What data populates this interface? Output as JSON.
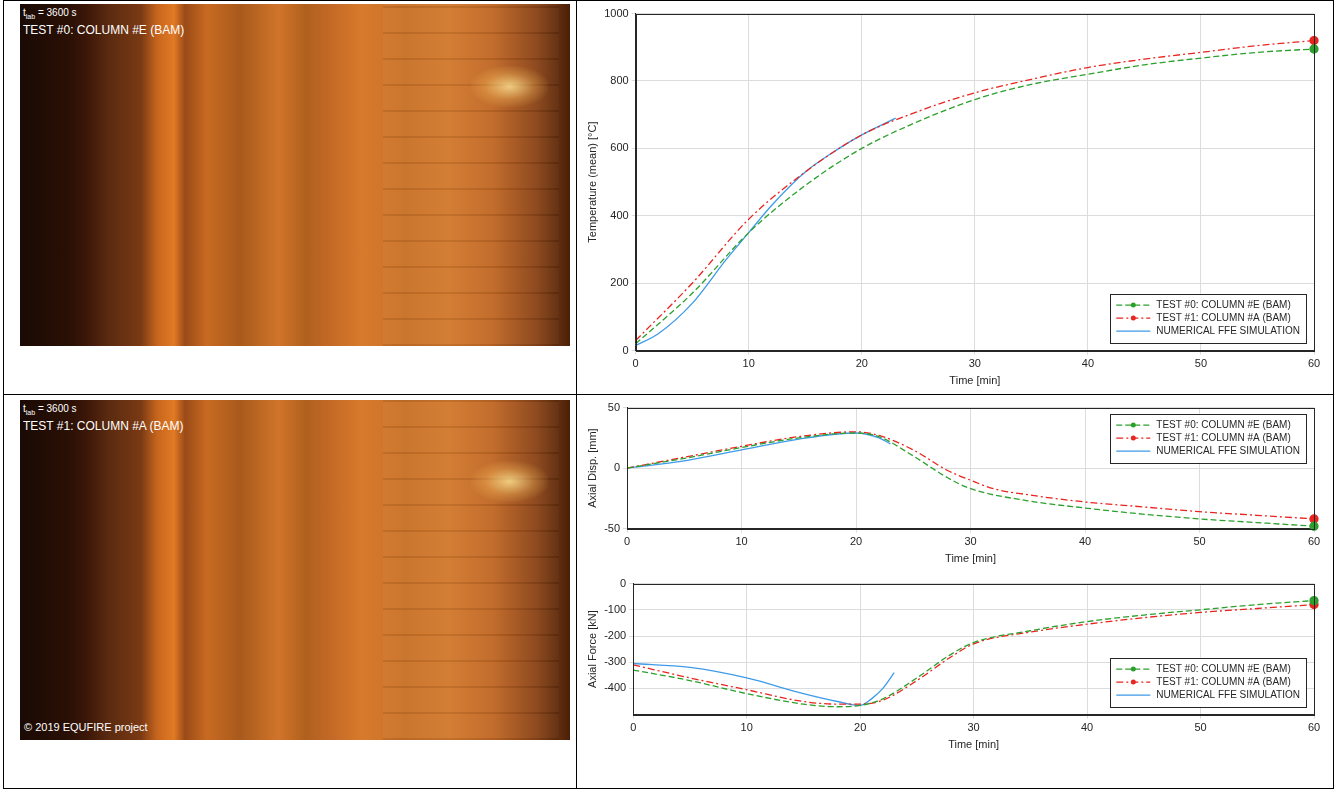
{
  "photos": [
    {
      "time_label": {
        "symbol": "t",
        "subscript": "lab",
        "text": " = 3600 s"
      },
      "caption": "TEST #0: COLUMN #E (BAM)"
    },
    {
      "time_label": {
        "symbol": "t",
        "subscript": "lab",
        "text": " = 3600 s"
      },
      "caption": "TEST #1: COLUMN #A (BAM)",
      "copyright": "© 2019 EQUFIRE project"
    }
  ],
  "chart_data": [
    {
      "type": "line",
      "x_label": "Time [min]",
      "y_label": "Temperature (mean) [°C]",
      "xlim": [
        0,
        60
      ],
      "xticks": [
        0,
        10,
        20,
        30,
        40,
        50,
        60
      ],
      "ylim": [
        0,
        1000
      ],
      "yticks": [
        0,
        200,
        400,
        600,
        800,
        1000
      ],
      "grid": true,
      "legend": "bottom-right",
      "series": [
        {
          "name": "TEST #0: COLUMN #E (BAM)",
          "color": "#2ca02c",
          "line_style": "dashed",
          "marker": "circle",
          "x": [
            0,
            5,
            10,
            15,
            20,
            25,
            30,
            35,
            40,
            45,
            50,
            55,
            60
          ],
          "values": [
            20,
            170,
            350,
            490,
            600,
            680,
            745,
            790,
            820,
            848,
            868,
            885,
            895
          ]
        },
        {
          "name": "TEST #1: COLUMN #A (BAM)",
          "color": "#e8251f",
          "line_style": "dashdot",
          "marker": "circle",
          "x": [
            0,
            5,
            10,
            15,
            20,
            25,
            30,
            35,
            40,
            45,
            50,
            55,
            60
          ],
          "values": [
            30,
            200,
            390,
            530,
            640,
            710,
            765,
            805,
            840,
            865,
            885,
            905,
            920
          ]
        },
        {
          "name": "NUMERICAL FFE SIMULATION",
          "color": "#3d9be9",
          "line_style": "solid",
          "x": [
            0,
            2,
            5,
            8,
            10,
            12,
            15,
            18,
            20,
            23
          ],
          "values": [
            15,
            50,
            140,
            270,
            350,
            430,
            530,
            600,
            640,
            690
          ]
        }
      ]
    },
    {
      "type": "line",
      "x_label": "Time [min]",
      "y_label": "Axial Disp. [mm]",
      "xlim": [
        0,
        60
      ],
      "xticks": [
        0,
        10,
        20,
        30,
        40,
        50,
        60
      ],
      "ylim": [
        -50,
        50
      ],
      "yticks": [
        -50,
        0,
        50
      ],
      "grid": true,
      "legend": "top-right",
      "series": [
        {
          "name": "TEST #0: COLUMN #E (BAM)",
          "color": "#2ca02c",
          "line_style": "dashed",
          "marker": "circle",
          "x": [
            0,
            5,
            10,
            15,
            20,
            22,
            25,
            28,
            30,
            35,
            40,
            45,
            50,
            55,
            60
          ],
          "values": [
            0,
            8,
            17,
            25,
            29,
            26,
            10,
            -8,
            -17,
            -27,
            -33,
            -38,
            -42,
            -45,
            -48
          ]
        },
        {
          "name": "TEST #1: COLUMN #A (BAM)",
          "color": "#e8251f",
          "line_style": "dashdot",
          "marker": "circle",
          "x": [
            0,
            5,
            10,
            15,
            20,
            22,
            25,
            28,
            30,
            32,
            35,
            40,
            45,
            50,
            55,
            60
          ],
          "values": [
            0,
            9,
            18,
            26,
            30,
            27,
            15,
            -2,
            -10,
            -17,
            -22,
            -28,
            -32,
            -36,
            -39,
            -42
          ]
        },
        {
          "name": "NUMERICAL FFE SIMULATION",
          "color": "#3d9be9",
          "line_style": "solid",
          "x": [
            0,
            5,
            10,
            15,
            20,
            22,
            23
          ],
          "values": [
            0,
            6,
            15,
            24,
            29,
            25,
            20
          ]
        }
      ]
    },
    {
      "type": "line",
      "x_label": "Time [min]",
      "y_label": "Axial Force [kN]",
      "xlim": [
        0,
        60
      ],
      "xticks": [
        0,
        10,
        20,
        30,
        40,
        50,
        60
      ],
      "ylim": [
        -500,
        0
      ],
      "yticks": [
        -400,
        -300,
        -200,
        -100,
        0
      ],
      "grid": true,
      "legend": "bottom-right",
      "series": [
        {
          "name": "TEST #0: COLUMN #E (BAM)",
          "color": "#2ca02c",
          "line_style": "dashed",
          "marker": "circle",
          "x": [
            0,
            5,
            10,
            15,
            18,
            20,
            22,
            25,
            28,
            30,
            35,
            40,
            45,
            50,
            55,
            60
          ],
          "values": [
            -330,
            -370,
            -420,
            -460,
            -470,
            -465,
            -440,
            -360,
            -270,
            -225,
            -180,
            -145,
            -120,
            -100,
            -80,
            -65
          ]
        },
        {
          "name": "TEST #1: COLUMN #A (BAM)",
          "color": "#e8251f",
          "line_style": "dashdot",
          "marker": "circle",
          "x": [
            0,
            5,
            10,
            15,
            18,
            20,
            22,
            25,
            28,
            30,
            35,
            40,
            45,
            50,
            55,
            60
          ],
          "values": [
            -310,
            -360,
            -405,
            -450,
            -460,
            -460,
            -445,
            -370,
            -280,
            -230,
            -185,
            -155,
            -130,
            -110,
            -95,
            -80
          ]
        },
        {
          "name": "NUMERICAL FFE SIMULATION",
          "color": "#3d9be9",
          "line_style": "solid",
          "x": [
            0,
            5,
            10,
            15,
            18,
            20,
            21,
            22,
            23
          ],
          "values": [
            -305,
            -320,
            -360,
            -420,
            -450,
            -465,
            -440,
            -400,
            -340
          ]
        }
      ]
    }
  ]
}
